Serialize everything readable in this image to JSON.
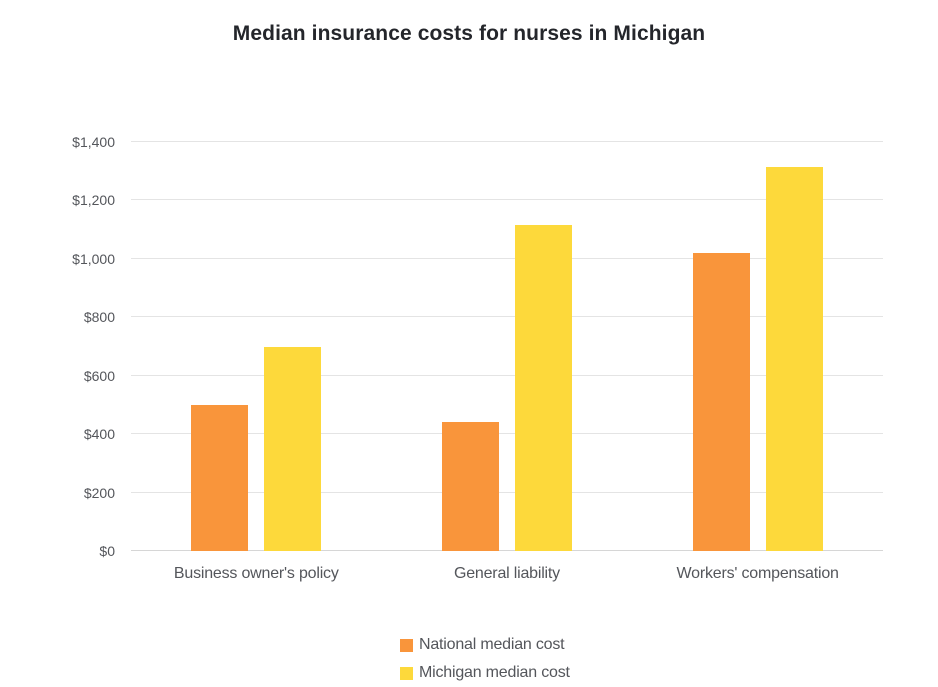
{
  "chart_data": {
    "type": "bar",
    "title": "Median insurance costs for nurses in Michigan",
    "categories": [
      "Business owner's policy",
      "General liability",
      "Workers' compensation"
    ],
    "series": [
      {
        "key": "national",
        "name": "National median cost",
        "color": "#f9953b",
        "values": [
          500,
          440,
          1020
        ]
      },
      {
        "key": "michigan",
        "name": "Michigan median cost",
        "color": "#fdd93b",
        "values": [
          700,
          1115,
          1315
        ]
      }
    ],
    "y_axis": {
      "max": 1400,
      "ticks": [
        {
          "value": 0,
          "label": "$0"
        },
        {
          "value": 200,
          "label": "$200"
        },
        {
          "value": 400,
          "label": "$400"
        },
        {
          "value": 600,
          "label": "$600"
        },
        {
          "value": 800,
          "label": "$800"
        },
        {
          "value": 1000,
          "label": "$1,000"
        },
        {
          "value": 1200,
          "label": "$1,200"
        },
        {
          "value": 1400,
          "label": "$1,400"
        }
      ]
    },
    "grid": true,
    "legend_position": "bottom-center"
  },
  "colors": {
    "background": "#ffffff",
    "grid_line": "#e4e4e4",
    "baseline": "#d6d6d6",
    "title_text": "#24262b",
    "axis_text": "#54565b"
  }
}
